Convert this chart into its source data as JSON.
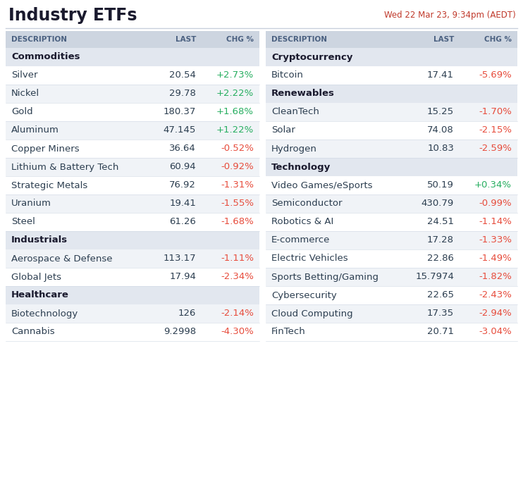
{
  "title": "Industry ETFs",
  "subtitle": "Wed 22 Mar 23, 9:34pm (AEDT)",
  "title_color": "#1a1a2e",
  "subtitle_color": "#c0392b",
  "bg_color": "#ffffff",
  "header_bg": "#cdd5e0",
  "category_bg": "#e2e7ef",
  "row_bg_odd": "#ffffff",
  "row_bg_even": "#f0f3f7",
  "header_text_color": "#4a6080",
  "category_text_color": "#1a1a2e",
  "desc_text_color": "#2c3e50",
  "last_text_color": "#2c3e50",
  "positive_color": "#27ae60",
  "negative_color": "#e74c3c",
  "border_color": "#d0d8e4",
  "divider_color": "#c8d0dc",
  "left_table": {
    "headers": [
      "DESCRIPTION",
      "LAST",
      "CHG %"
    ],
    "sections": [
      {
        "category": "Commodities",
        "rows": [
          {
            "desc": "Silver",
            "last": "20.54",
            "chg": "+2.73%",
            "positive": true
          },
          {
            "desc": "Nickel",
            "last": "29.78",
            "chg": "+2.22%",
            "positive": true
          },
          {
            "desc": "Gold",
            "last": "180.37",
            "chg": "+1.68%",
            "positive": true
          },
          {
            "desc": "Aluminum",
            "last": "47.145",
            "chg": "+1.22%",
            "positive": true
          },
          {
            "desc": "Copper Miners",
            "last": "36.64",
            "chg": "-0.52%",
            "positive": false
          },
          {
            "desc": "Lithium & Battery Tech",
            "last": "60.94",
            "chg": "-0.92%",
            "positive": false
          },
          {
            "desc": "Strategic Metals",
            "last": "76.92",
            "chg": "-1.31%",
            "positive": false
          },
          {
            "desc": "Uranium",
            "last": "19.41",
            "chg": "-1.55%",
            "positive": false
          },
          {
            "desc": "Steel",
            "last": "61.26",
            "chg": "-1.68%",
            "positive": false
          }
        ]
      },
      {
        "category": "Industrials",
        "rows": [
          {
            "desc": "Aerospace & Defense",
            "last": "113.17",
            "chg": "-1.11%",
            "positive": false
          },
          {
            "desc": "Global Jets",
            "last": "17.94",
            "chg": "-2.34%",
            "positive": false
          }
        ]
      },
      {
        "category": "Healthcare",
        "rows": [
          {
            "desc": "Biotechnology",
            "last": "126",
            "chg": "-2.14%",
            "positive": false
          },
          {
            "desc": "Cannabis",
            "last": "9.2998",
            "chg": "-4.30%",
            "positive": false
          }
        ]
      }
    ]
  },
  "right_table": {
    "headers": [
      "DESCRIPTION",
      "LAST",
      "CHG %"
    ],
    "sections": [
      {
        "category": "Cryptocurrency",
        "rows": [
          {
            "desc": "Bitcoin",
            "last": "17.41",
            "chg": "-5.69%",
            "positive": false
          }
        ]
      },
      {
        "category": "Renewables",
        "rows": [
          {
            "desc": "CleanTech",
            "last": "15.25",
            "chg": "-1.70%",
            "positive": false
          },
          {
            "desc": "Solar",
            "last": "74.08",
            "chg": "-2.15%",
            "positive": false
          },
          {
            "desc": "Hydrogen",
            "last": "10.83",
            "chg": "-2.59%",
            "positive": false
          }
        ]
      },
      {
        "category": "Technology",
        "rows": [
          {
            "desc": "Video Games/eSports",
            "last": "50.19",
            "chg": "+0.34%",
            "positive": true
          },
          {
            "desc": "Semiconductor",
            "last": "430.79",
            "chg": "-0.99%",
            "positive": false
          },
          {
            "desc": "Robotics & AI",
            "last": "24.51",
            "chg": "-1.14%",
            "positive": false
          },
          {
            "desc": "E-commerce",
            "last": "17.28",
            "chg": "-1.33%",
            "positive": false
          },
          {
            "desc": "Electric Vehicles",
            "last": "22.86",
            "chg": "-1.49%",
            "positive": false
          },
          {
            "desc": "Sports Betting/Gaming",
            "last": "15.7974",
            "chg": "-1.82%",
            "positive": false
          },
          {
            "desc": "Cybersecurity",
            "last": "22.65",
            "chg": "-2.43%",
            "positive": false
          },
          {
            "desc": "Cloud Computing",
            "last": "17.35",
            "chg": "-2.94%",
            "positive": false
          },
          {
            "desc": "FinTech",
            "last": "20.71",
            "chg": "-3.04%",
            "positive": false
          }
        ]
      }
    ]
  }
}
